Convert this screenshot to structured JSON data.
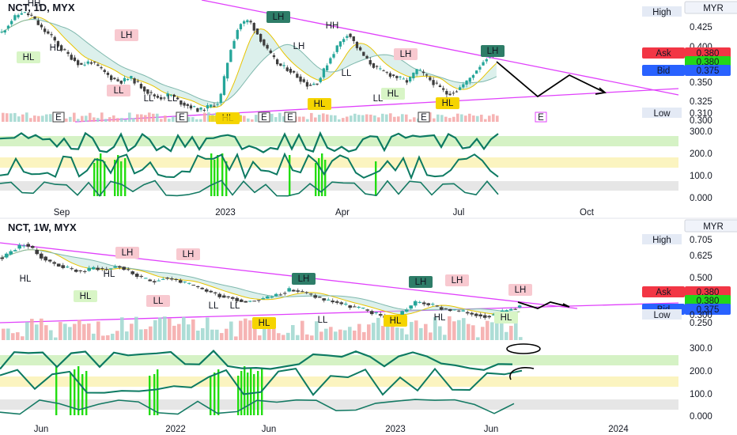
{
  "colors": {
    "candle_up": "#26a69a",
    "candle_dn": "#3d3d3d",
    "channel": "#e040fb",
    "forecast": "#000000",
    "osc": "#0d7a62",
    "ask": "#f23645",
    "bid": "#2962ff",
    "last": "#22d61a",
    "lh": "#2e7d68",
    "lh_light": "#f8c9d0",
    "ll": "#f8c9d0",
    "hl": "#d8f5c6",
    "hl_alt": "#f5d400",
    "band_green": "#d5f2c5",
    "band_yellow": "#fbf4c0",
    "band_grey": "#e6e6e6",
    "spike": "#22dd11"
  },
  "top": {
    "symbol": "NCT, 1D, MYX",
    "currency": "MYR",
    "high_label": "High",
    "low_label": "Low",
    "low_value": "0.310",
    "ask_label": "Ask",
    "ask_value": "0.380",
    "last_value": "0.380",
    "bid_label": "Bid",
    "bid_value": "0.375",
    "price_ticks": [
      "0.425",
      "0.400",
      "0.375",
      "0.350",
      "0.325",
      "0.300"
    ],
    "osc_ticks": [
      "300.0",
      "200.0",
      "100.0",
      "0.000"
    ],
    "x_ticks": [
      "Sep",
      "2023",
      "Apr",
      "Jul",
      "Oct"
    ],
    "event_labels": [
      "E",
      "E",
      "E",
      "E",
      "E",
      "E"
    ],
    "pivot_labels": [
      "HH",
      "HL",
      "HL",
      "LH",
      "LL",
      "LL",
      "LL",
      "HL",
      "LH",
      "LH",
      "HH",
      "LL",
      "HL",
      "LH",
      "HL",
      "LL",
      "HL",
      "LH"
    ]
  },
  "bottom": {
    "symbol": "NCT, 1W, MYX",
    "currency": "MYR",
    "high_label": "High",
    "high_value": "0.705",
    "low_label": "Low",
    "low_value": "0.300",
    "ask_label": "Ask",
    "ask_value": "0.380",
    "last_value": "0.380",
    "bid_label": "Bid",
    "bid_value": "0.375",
    "price_ticks": [
      "0.700",
      "0.625",
      "0.500",
      "0.250"
    ],
    "osc_ticks": [
      "300.0",
      "200.0",
      "100.0",
      "0.000"
    ],
    "x_ticks": [
      "Jun",
      "2022",
      "Jun",
      "2023",
      "Jun",
      "2024"
    ],
    "pivot_labels": [
      "LH",
      "LH",
      "LL",
      "HL",
      "HL",
      "LH",
      "LL",
      "LL",
      "HL",
      "LH",
      "LH",
      "HL",
      "HL",
      "LL",
      "HL",
      "LH",
      "HL"
    ]
  },
  "chart_data": [
    {
      "type": "line",
      "title": "NCT, 1D, MYX",
      "x_ticks": [
        "Sep",
        "2023",
        "Apr",
        "Jul",
        "Oct"
      ],
      "ylim": [
        0.3,
        0.435
      ],
      "series": [
        {
          "values": [
            0.405,
            0.42,
            0.43,
            0.425,
            0.41,
            0.4,
            0.385,
            0.375,
            0.365,
            0.37,
            0.36,
            0.35,
            0.345,
            0.35,
            0.34,
            0.33,
            0.325,
            0.33,
            0.32,
            0.315,
            0.31,
            0.315,
            0.32,
            0.38,
            0.415,
            0.42,
            0.4,
            0.38,
            0.365,
            0.36,
            0.35,
            0.34,
            0.345,
            0.37,
            0.39,
            0.405,
            0.385,
            0.37,
            0.36,
            0.355,
            0.35,
            0.345,
            0.36,
            0.35,
            0.34,
            0.33,
            0.335,
            0.345,
            0.36,
            0.375,
            0.38
          ]
        }
      ],
      "price_scale": [
        "0.425",
        "0.400",
        "0.375",
        "0.350",
        "0.325",
        "0.300"
      ],
      "oscillator_scale": [
        "300.0",
        "200.0",
        "100.0",
        "0.000"
      ],
      "last_price": 0.38,
      "ask": 0.38,
      "bid": 0.375,
      "low": 0.31
    },
    {
      "type": "line",
      "title": "NCT, 1W, MYX",
      "x_ticks": [
        "Jun",
        "2022",
        "Jun",
        "2023",
        "Jun",
        "2024"
      ],
      "ylim": [
        0.25,
        0.72
      ],
      "series": [
        {
          "values": [
            0.62,
            0.66,
            0.69,
            0.64,
            0.6,
            0.58,
            0.56,
            0.55,
            0.57,
            0.56,
            0.58,
            0.55,
            0.52,
            0.5,
            0.52,
            0.51,
            0.49,
            0.47,
            0.45,
            0.43,
            0.42,
            0.4,
            0.41,
            0.42,
            0.44,
            0.46,
            0.45,
            0.43,
            0.41,
            0.4,
            0.38,
            0.37,
            0.35,
            0.33,
            0.32,
            0.36,
            0.4,
            0.39,
            0.37,
            0.36,
            0.35,
            0.34,
            0.33,
            0.34,
            0.36,
            0.38
          ]
        }
      ],
      "price_scale": [
        "0.700",
        "0.625",
        "0.500",
        "0.250"
      ],
      "oscillator_scale": [
        "300.0",
        "200.0",
        "100.0",
        "0.000"
      ],
      "last_price": 0.38,
      "ask": 0.38,
      "bid": 0.375,
      "high": 0.705,
      "low": 0.3
    }
  ]
}
